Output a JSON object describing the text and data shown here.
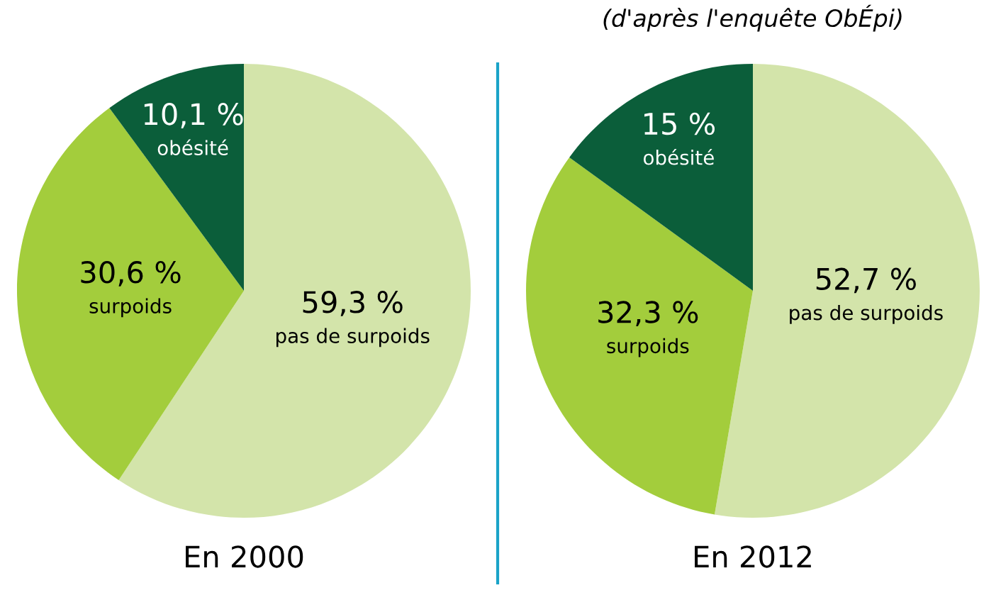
{
  "chart_data": [
    {
      "type": "pie",
      "title": "En 2000",
      "categories": [
        "pas de surpoids",
        "surpoids",
        "obésité"
      ],
      "values": [
        59.3,
        30.6,
        10.1
      ],
      "value_labels": [
        "59,3 %",
        "30,6 %",
        "10,1 %"
      ],
      "colors": [
        "#d3e4aa",
        "#a3cd3c",
        "#0b5e3a"
      ],
      "legend": false
    },
    {
      "type": "pie",
      "title": "En 2012",
      "categories": [
        "pas de surpoids",
        "surpoids",
        "obésité"
      ],
      "values": [
        52.7,
        32.3,
        15
      ],
      "value_labels": [
        "52,7 %",
        "32,3 %",
        "15 %"
      ],
      "colors": [
        "#d3e4aa",
        "#a3cd3c",
        "#0b5e3a"
      ],
      "legend": false,
      "annotations": [
        "(d'après l'enquête ObÉpi)"
      ]
    }
  ]
}
